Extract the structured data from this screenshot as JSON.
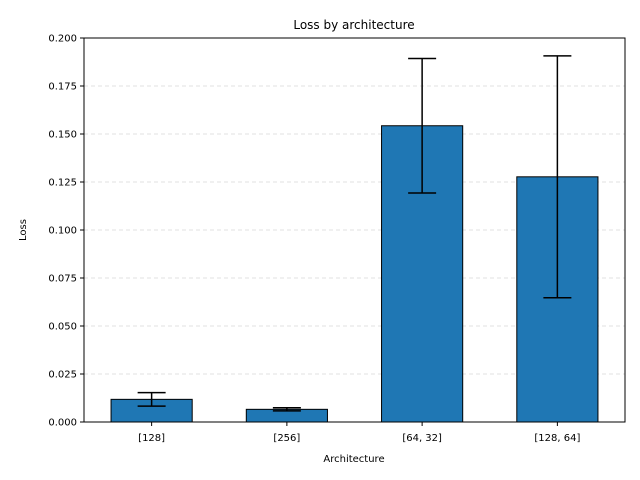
{
  "chart_data": {
    "type": "bar",
    "title": "Loss by architecture",
    "xlabel": "Architecture",
    "ylabel": "Loss",
    "categories": [
      "[128]",
      "[256]",
      "[64, 32]",
      "[128, 64]"
    ],
    "values": [
      0.0118,
      0.0066,
      0.1543,
      0.1277
    ],
    "errors": [
      0.0035,
      0.0008,
      0.035,
      0.063
    ],
    "ylim": [
      0,
      0.2
    ],
    "yticks": [
      "0.000",
      "0.025",
      "0.050",
      "0.075",
      "0.100",
      "0.125",
      "0.150",
      "0.175",
      "0.200"
    ],
    "ytick_values": [
      0,
      0.025,
      0.05,
      0.075,
      0.1,
      0.125,
      0.15,
      0.175,
      0.2
    ],
    "grid": "y dashed",
    "bar_color": "#1f77b4",
    "edge_color": "#000000"
  }
}
